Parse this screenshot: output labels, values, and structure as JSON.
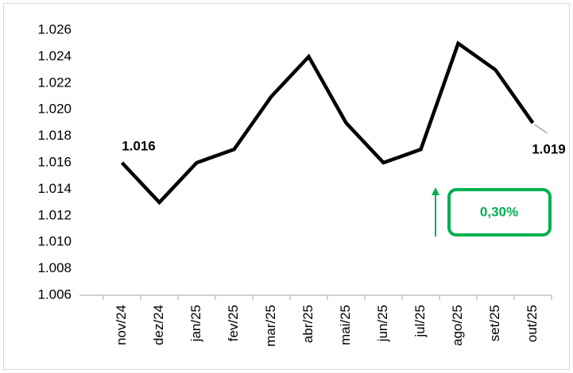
{
  "chart_data": {
    "type": "line",
    "categories": [
      "nov/24",
      "dez/24",
      "jan/25",
      "fev/25",
      "mar/25",
      "abr/25",
      "mai/25",
      "jun/25",
      "jul/25",
      "ago/25",
      "set/25",
      "out/25"
    ],
    "values": [
      1.016,
      1.013,
      1.016,
      1.017,
      1.021,
      1.024,
      1.019,
      1.016,
      1.017,
      1.025,
      1.023,
      1.019
    ],
    "value_labels": [
      "1.016",
      null,
      null,
      null,
      null,
      null,
      null,
      null,
      null,
      null,
      null,
      "1.019"
    ],
    "color": "#000000",
    "ylim": [
      1.006,
      1.026
    ],
    "yticks": [
      1.006,
      1.008,
      {
        "value": 1.01,
        "label": "1.010"
      },
      1.012,
      1.014,
      1.016,
      1.018,
      {
        "value": 1.02,
        "label": "1.020"
      },
      1.022,
      1.024,
      1.026
    ],
    "grid": false,
    "annotation": "0,30%"
  }
}
